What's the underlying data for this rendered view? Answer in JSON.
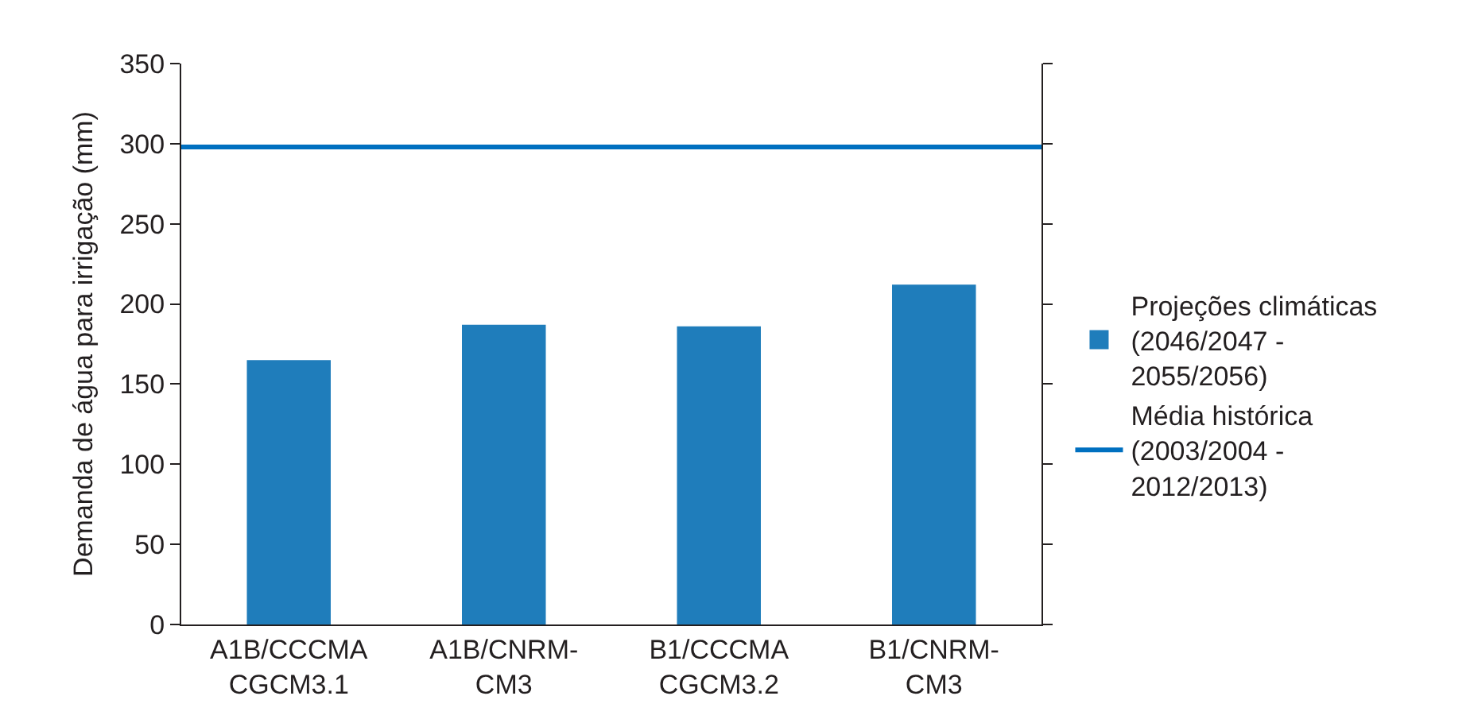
{
  "chart_data": {
    "type": "bar",
    "ylabel": "Demanda de água para irrigação (mm)",
    "categories": [
      "A1B/CCCMA CGCM3.1",
      "A1B/CNRM-CM3",
      "B1/CCCMA CGCM3.2",
      "B1/CNRM-CM3"
    ],
    "series": [
      {
        "name": "Projeções climáticas (2046/2047 - 2055/2056)",
        "color": "#1f7dbb",
        "values": [
          165,
          187,
          186,
          212
        ]
      }
    ],
    "ref_lines": [
      {
        "axis": "y",
        "value": 298,
        "label": "Média histórica (2003/2004 - 2012/2013)",
        "color": "#0070c0"
      }
    ],
    "ylim": [
      0,
      350
    ],
    "yticks": [
      0,
      50,
      100,
      150,
      200,
      250,
      300,
      350
    ],
    "grid": false,
    "legend": "right"
  }
}
